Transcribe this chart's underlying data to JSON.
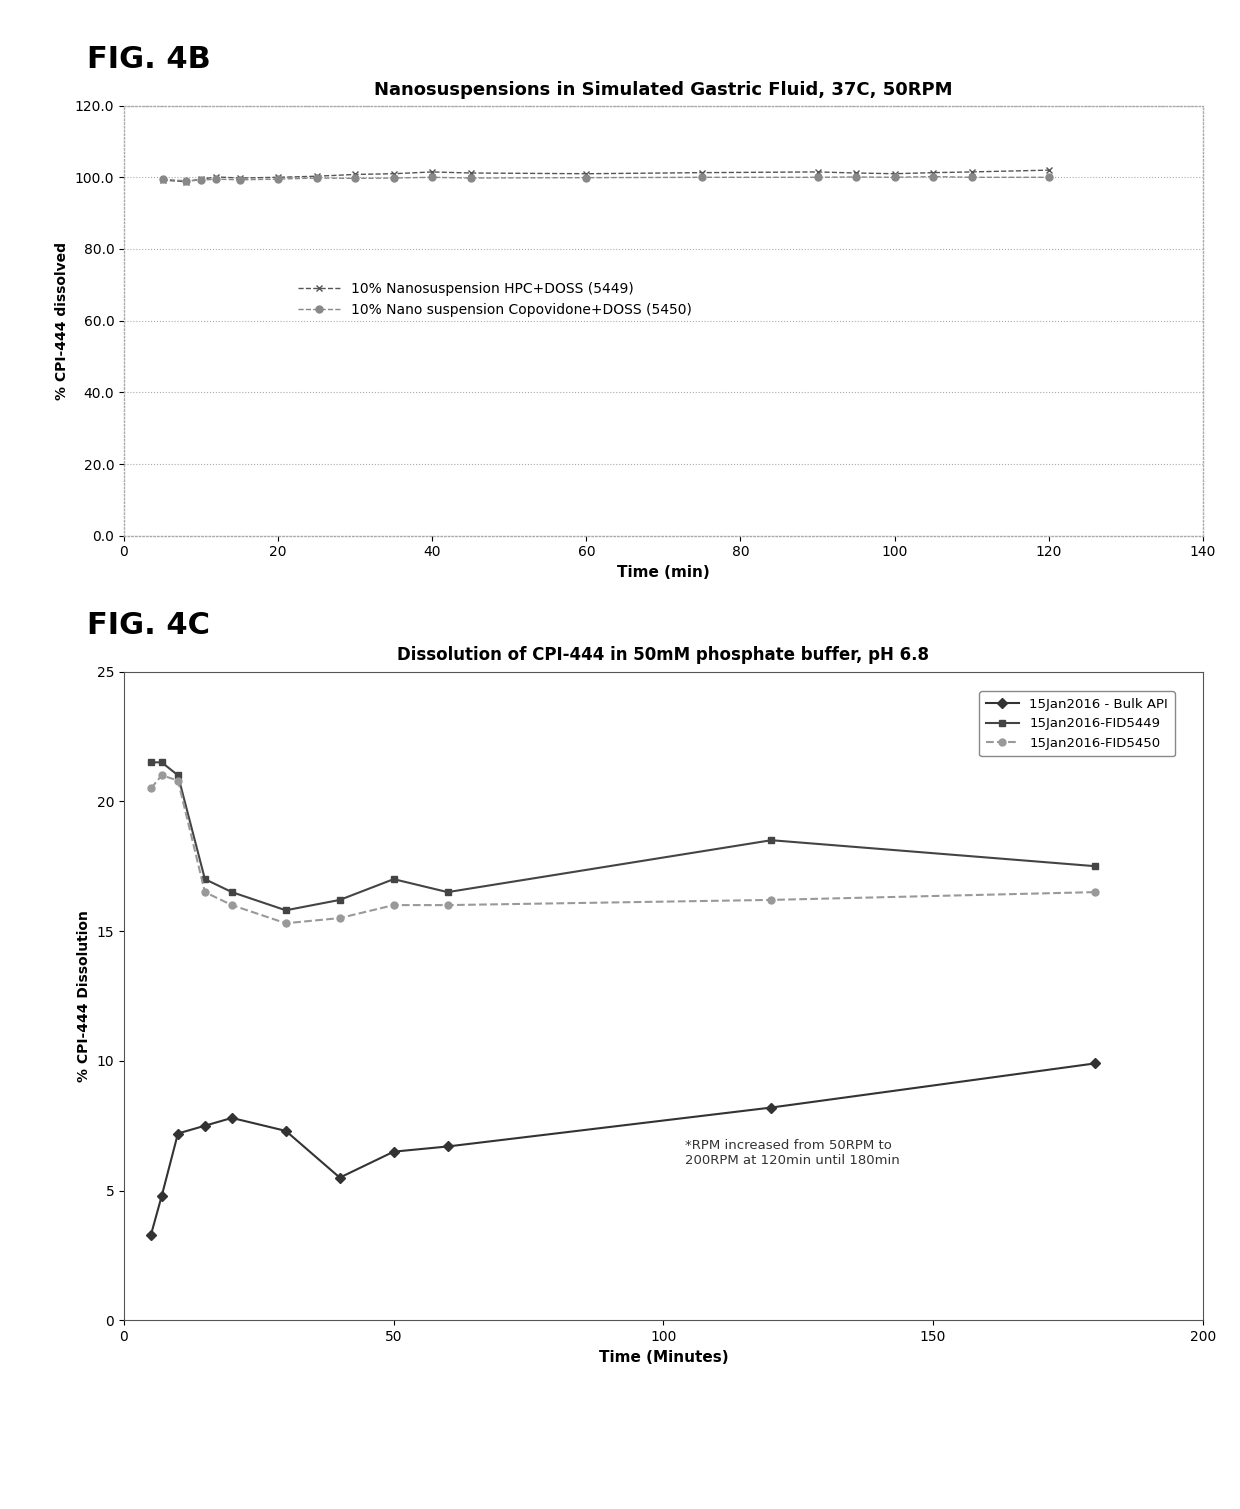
{
  "fig4b": {
    "title": "Nanosuspensions in Simulated Gastric Fluid, 37C, 50RPM",
    "xlabel": "Time (min)",
    "ylabel": "% CPI-444 dissolved",
    "xlim": [
      0,
      140
    ],
    "ylim": [
      0.0,
      120.0
    ],
    "yticks": [
      0.0,
      20.0,
      40.0,
      60.0,
      80.0,
      100.0,
      120.0
    ],
    "xticks": [
      0,
      20,
      40,
      60,
      80,
      100,
      120,
      140
    ],
    "series": [
      {
        "label": "10% Nanosuspension HPC+DOSS (5449)",
        "x": [
          5,
          8,
          10,
          12,
          15,
          20,
          25,
          30,
          35,
          40,
          45,
          60,
          75,
          90,
          95,
          100,
          105,
          110,
          120
        ],
        "y": [
          99.2,
          98.8,
          99.5,
          100.1,
          99.8,
          100.0,
          100.3,
          100.8,
          101.0,
          101.5,
          101.2,
          101.0,
          101.3,
          101.5,
          101.2,
          101.0,
          101.3,
          101.5,
          102.0
        ],
        "marker": "x",
        "color": "#555555",
        "linestyle": "--"
      },
      {
        "label": "10% Nano suspension Copovidone+DOSS (5450)",
        "x": [
          5,
          8,
          10,
          12,
          15,
          20,
          25,
          30,
          35,
          40,
          45,
          60,
          75,
          90,
          95,
          100,
          105,
          110,
          120
        ],
        "y": [
          99.5,
          99.0,
          99.2,
          99.5,
          99.3,
          99.5,
          99.8,
          99.7,
          99.8,
          100.0,
          99.8,
          99.9,
          100.0,
          100.0,
          100.1,
          100.0,
          100.2,
          100.0,
          100.0
        ],
        "marker": "o",
        "color": "#888888",
        "linestyle": "--"
      }
    ]
  },
  "fig4c": {
    "title": "Dissolution of CPI-444 in 50mM phosphate buffer, pH 6.8",
    "xlabel": "Time (Minutes)",
    "ylabel": "% CPI-444 Dissolution",
    "xlim": [
      0,
      200
    ],
    "ylim": [
      0,
      25
    ],
    "yticks": [
      0,
      5,
      10,
      15,
      20,
      25
    ],
    "xticks": [
      0,
      50,
      100,
      150,
      200
    ],
    "annotation": "*RPM increased from 50RPM to\n200RPM at 120min until 180min",
    "series": [
      {
        "label": "15Jan2016 - Bulk API",
        "x": [
          5,
          7,
          10,
          15,
          20,
          30,
          40,
          50,
          60,
          120,
          180
        ],
        "y": [
          3.3,
          4.8,
          7.2,
          7.5,
          7.8,
          7.3,
          5.5,
          6.5,
          6.7,
          8.2,
          9.9
        ],
        "marker": "D",
        "color": "#333333",
        "linestyle": "-",
        "markersize": 5
      },
      {
        "label": "15Jan2016-FID5449",
        "x": [
          5,
          7,
          10,
          15,
          20,
          30,
          40,
          50,
          60,
          120,
          180
        ],
        "y": [
          21.5,
          21.5,
          21.0,
          17.0,
          16.5,
          15.8,
          16.2,
          17.0,
          16.5,
          18.5,
          17.5
        ],
        "marker": "s",
        "color": "#444444",
        "linestyle": "-",
        "markersize": 5
      },
      {
        "label": "15Jan2016-FID5450",
        "x": [
          5,
          7,
          10,
          15,
          20,
          30,
          40,
          50,
          60,
          120,
          180
        ],
        "y": [
          20.5,
          21.0,
          20.8,
          16.5,
          16.0,
          15.3,
          15.5,
          16.0,
          16.0,
          16.2,
          16.5
        ],
        "marker": "o",
        "color": "#999999",
        "linestyle": "--",
        "markersize": 5
      }
    ]
  },
  "background_color": "#ffffff",
  "label_4b": "FIG. 4B",
  "label_4c": "FIG. 4C"
}
